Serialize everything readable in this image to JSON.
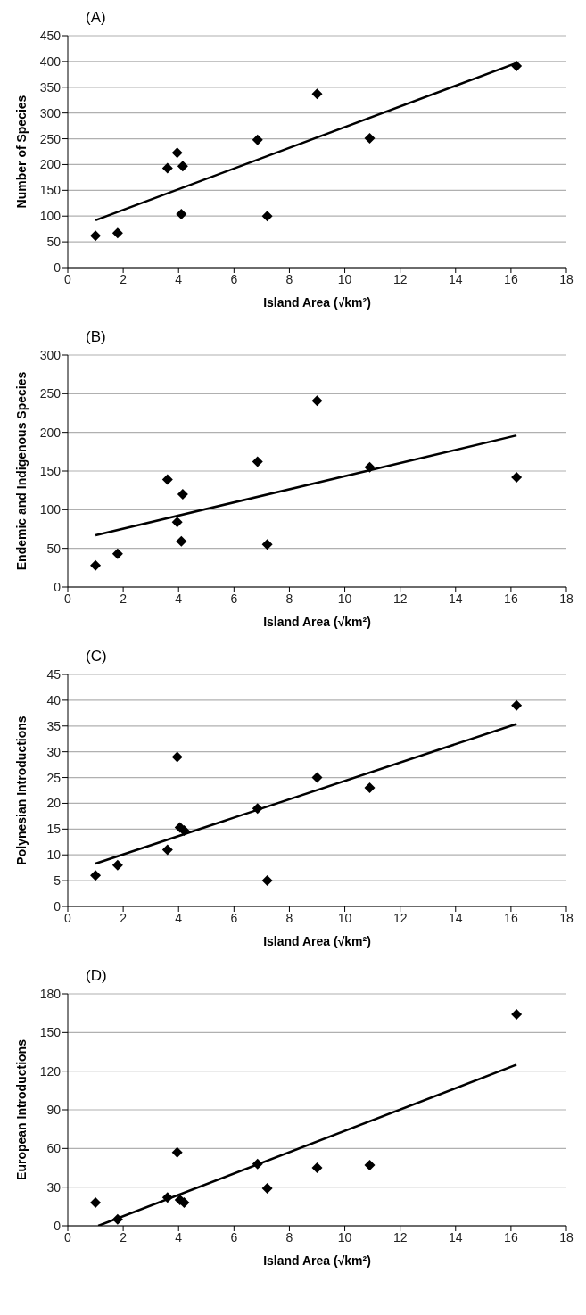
{
  "chart_data": [
    {
      "type": "scatter",
      "title": "(A)",
      "xlabel": "Island Area (√km²)",
      "ylabel": "Number of Species",
      "xlim": [
        0,
        18
      ],
      "xticks": [
        0,
        2,
        4,
        6,
        8,
        10,
        12,
        14,
        16,
        18
      ],
      "ylim": [
        0,
        450
      ],
      "yticks": [
        0,
        50,
        100,
        150,
        200,
        250,
        300,
        350,
        400,
        450
      ],
      "grid": "y",
      "legend": false,
      "series": [
        {
          "type": "scatter",
          "marker": "diamond",
          "color": "#000000",
          "x": [
            1.0,
            1.8,
            3.6,
            3.95,
            4.1,
            4.15,
            6.85,
            7.2,
            9.0,
            10.9,
            16.2
          ],
          "values": [
            62,
            67,
            193,
            223,
            104,
            197,
            248,
            100,
            337,
            251,
            391
          ]
        },
        {
          "type": "line",
          "marker": "none",
          "color": "#000000",
          "x": [
            1.0,
            16.2
          ],
          "values": [
            92,
            397
          ]
        }
      ]
    },
    {
      "type": "scatter",
      "title": "(B)",
      "xlabel": "Island Area (√km²)",
      "ylabel": "Endemic and Indigenous Species",
      "xlim": [
        0,
        18
      ],
      "xticks": [
        0,
        2,
        4,
        6,
        8,
        10,
        12,
        14,
        16,
        18
      ],
      "ylim": [
        0,
        300
      ],
      "yticks": [
        0,
        50,
        100,
        150,
        200,
        250,
        300
      ],
      "grid": "y",
      "legend": false,
      "series": [
        {
          "type": "scatter",
          "marker": "diamond",
          "color": "#000000",
          "x": [
            1.0,
            1.8,
            3.6,
            3.95,
            4.1,
            4.15,
            6.85,
            7.2,
            9.0,
            10.9,
            16.2
          ],
          "values": [
            28,
            43,
            139,
            84,
            59,
            120,
            162,
            55,
            241,
            155,
            142
          ]
        },
        {
          "type": "line",
          "marker": "none",
          "color": "#000000",
          "x": [
            1.0,
            16.2
          ],
          "values": [
            67,
            196
          ]
        }
      ]
    },
    {
      "type": "scatter",
      "title": "(C)",
      "xlabel": "Island Area (√km²)",
      "ylabel": "Polynesian Introductions",
      "xlim": [
        0,
        18
      ],
      "xticks": [
        0,
        2,
        4,
        6,
        8,
        10,
        12,
        14,
        16,
        18
      ],
      "ylim": [
        0,
        45
      ],
      "yticks": [
        0,
        5,
        10,
        15,
        20,
        25,
        30,
        35,
        40,
        45
      ],
      "grid": "y",
      "legend": false,
      "series": [
        {
          "type": "scatter",
          "marker": "diamond",
          "color": "#000000",
          "x": [
            1.0,
            1.8,
            3.6,
            3.95,
            4.05,
            4.2,
            6.85,
            7.2,
            9.0,
            10.9,
            16.2
          ],
          "values": [
            6,
            8,
            11,
            29,
            15.3,
            14.7,
            19,
            5,
            25,
            23,
            39
          ]
        },
        {
          "type": "line",
          "marker": "none",
          "color": "#000000",
          "x": [
            1.0,
            16.2
          ],
          "values": [
            8.3,
            35.4
          ]
        }
      ]
    },
    {
      "type": "scatter",
      "title": "(D)",
      "xlabel": "Island Area (√km²)",
      "ylabel": "European Introductions",
      "xlim": [
        0,
        18
      ],
      "xticks": [
        0,
        2,
        4,
        6,
        8,
        10,
        12,
        14,
        16,
        18
      ],
      "ylim": [
        0,
        180
      ],
      "yticks": [
        0,
        30,
        60,
        90,
        120,
        150,
        180
      ],
      "grid": "y",
      "legend": false,
      "series": [
        {
          "type": "scatter",
          "marker": "diamond",
          "color": "#000000",
          "x": [
            1.0,
            1.8,
            3.6,
            3.95,
            4.05,
            4.2,
            6.85,
            7.2,
            9.0,
            10.9,
            16.2
          ],
          "values": [
            18,
            5,
            22,
            57,
            20,
            18,
            48,
            29,
            45,
            47,
            164
          ]
        },
        {
          "type": "line",
          "marker": "none",
          "color": "#000000",
          "x": [
            1.1,
            16.2
          ],
          "values": [
            0,
            125
          ]
        }
      ]
    }
  ]
}
